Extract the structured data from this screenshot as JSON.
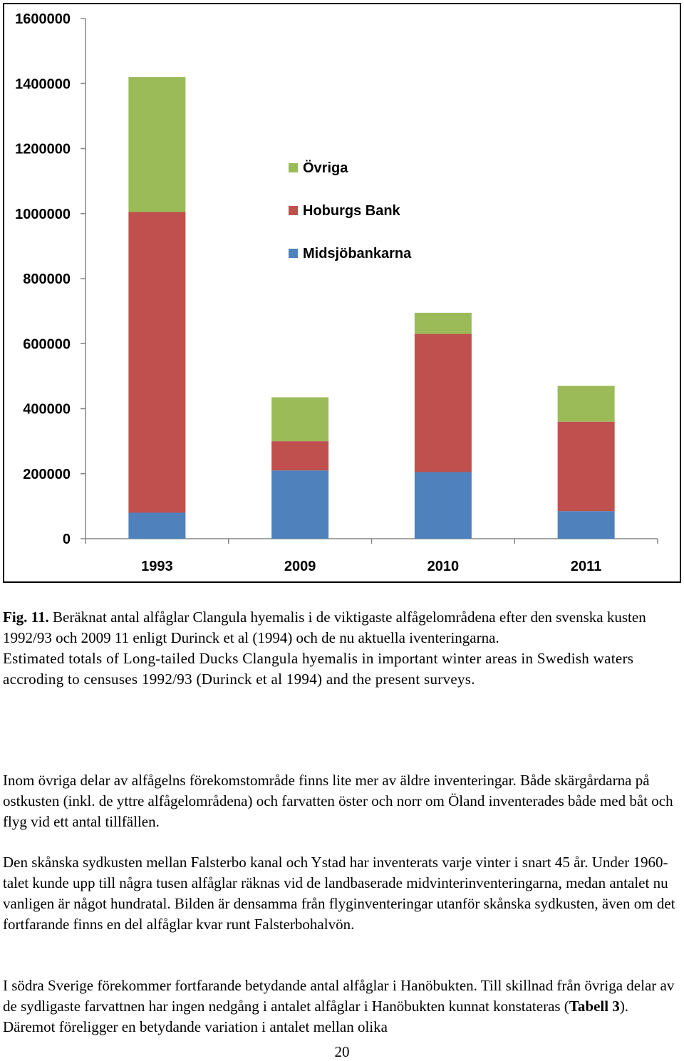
{
  "chart_data": {
    "type": "bar",
    "stacked": true,
    "categories": [
      "1993",
      "2009",
      "2010",
      "2011"
    ],
    "series": [
      {
        "name": "Midsjöbankarna",
        "color": "#4f81bd",
        "values": [
          80000,
          210000,
          205000,
          85000
        ]
      },
      {
        "name": "Hoburgs Bank",
        "color": "#c0504d",
        "values": [
          925000,
          90000,
          425000,
          275000
        ]
      },
      {
        "name": "Övriga",
        "color": "#9bbb59",
        "values": [
          415000,
          135000,
          65000,
          110000
        ]
      }
    ],
    "legend_order": [
      "Övriga",
      "Hoburgs Bank",
      "Midsjöbankarna"
    ],
    "legend_position": "inside-top-center",
    "ylim": [
      0,
      1600000
    ],
    "yticks": [
      "0",
      "200000",
      "400000",
      "600000",
      "800000",
      "1000000",
      "1200000",
      "1400000",
      "1600000"
    ],
    "title": "",
    "xlabel": "",
    "ylabel": ""
  },
  "caption": {
    "label": "Fig. 11.",
    "swedish": " Beräknat antal alfåglar Clangula hyemalis i de viktigaste alfågelområdena efter den svenska kusten 1992/93 och 2009 11 enligt Durinck et al (1994) och de nu aktuella iventeringarna.",
    "english": "Estimated totals of Long-tailed Ducks Clangula hyemalis in important winter areas in Swedish waters accroding to censuses 1992/93 (Durinck et al 1994) and the present surveys."
  },
  "paragraphs": {
    "p1": "Inom övriga delar av alfågelns förekomstområde finns lite mer av äldre inventeringar. Både skärgårdarna på ostkusten (inkl. de yttre alfågelområdena) och farvatten öster och norr om Öland inventerades både med båt och flyg vid ett antal tillfällen.",
    "p2": "Den skånska sydkusten mellan Falsterbo kanal och Ystad har inventerats varje vinter i snart 45 år. Under 1960-talet kunde upp till några tusen alfåglar räknas vid de landbaserade midvinterinventeringarna, medan antalet nu vanligen är något hundratal. Bilden är densamma från flyginventeringar utanför skånska sydkusten, även om det fortfarande finns en del alfåglar kvar runt Falsterbohalvön.",
    "p3_before": "I södra Sverige förekommer fortfarande betydande antal alfåglar i Hanöbukten. Till skillnad från övriga delar av de sydligaste farvattnen har ingen nedgång i antalet alfåglar i Hanöbukten kunnat konstateras (",
    "p3_ref": "Tabell 3",
    "p3_after": "). Däremot föreligger en betydande variation i antalet mellan olika"
  },
  "page_number": "20"
}
